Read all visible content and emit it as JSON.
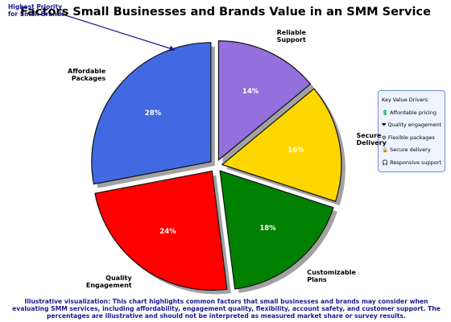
{
  "chart_data": {
    "type": "pie",
    "title": "Factors Small Businesses and Brands Value in an SMM Service",
    "categories": [
      "Affordable\nPackages",
      "Quality\nEngagement",
      "Customizable\nPlans",
      "Secure\nDelivery",
      "Reliable\nSupport"
    ],
    "values": [
      28,
      24,
      18,
      16,
      14
    ],
    "value_labels": [
      "28%",
      "24%",
      "18%",
      "16%",
      "14%"
    ],
    "colors": [
      "#4169e1",
      "#ff0000",
      "#008000",
      "#ffd700",
      "#9370db"
    ],
    "annotation": "Highest Priority\nfor Small Brands",
    "info_box": {
      "title": "Key Value Drivers",
      "items": [
        "💲 Affordable pricing",
        "❤ Quality engagement",
        "⚙ Flexible packages",
        "🔒 Secure delivery",
        "🎧 Responsive support"
      ]
    },
    "caption": "Illustrative visualization: This chart highlights common factors that small businesses and brands may consider when evaluating SMM services, including affordability, engagement quality, flexibility, account safety, and customer support. The percentages are illustrative and should not be interpreted as measured market share or survey results."
  }
}
